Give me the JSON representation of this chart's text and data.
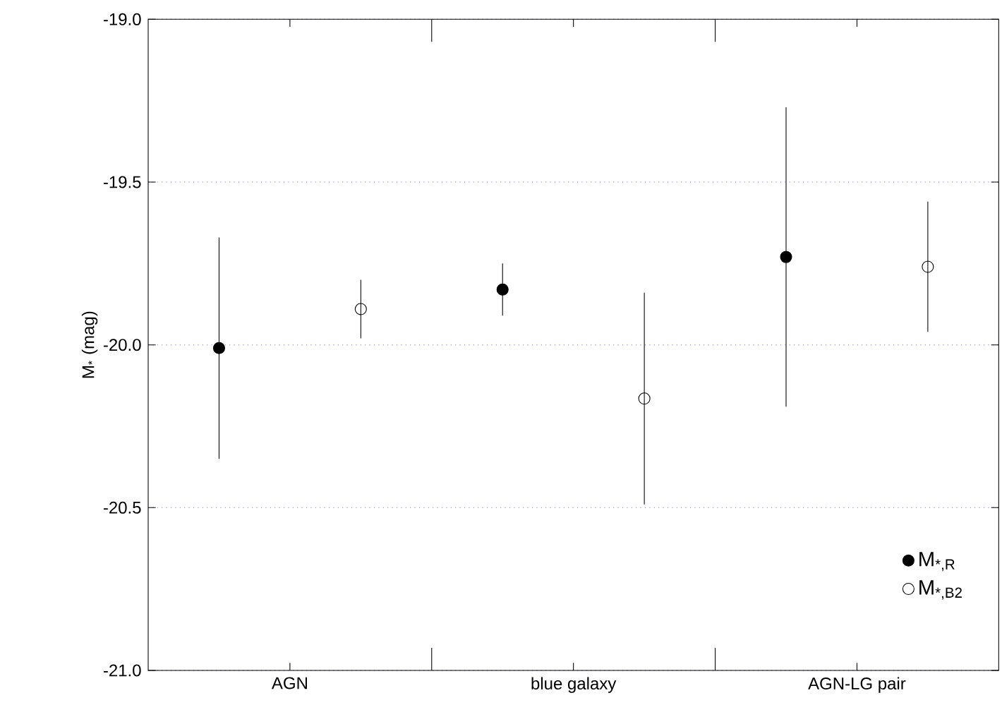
{
  "chart_data": {
    "type": "scatter",
    "ylabel": "M$_{*}$ (mag)",
    "categories": [
      "AGN",
      "blue galaxy",
      "AGN-LG pair"
    ],
    "series": [
      {
        "name": "M$_{*,R}$",
        "color": "#000000",
        "values": [
          -20.01,
          -19.83,
          -19.73
        ],
        "errors": [
          0.34,
          0.08,
          0.46
        ]
      },
      {
        "name": "M$_{*,B2}$",
        "color": "#000000",
        "values": [
          -19.89,
          -20.165,
          -19.76
        ],
        "errors": [
          0.09,
          0.325,
          0.2
        ]
      }
    ],
    "ylim": [
      -21,
      -19
    ],
    "yticks": [
      {
        "value": -21,
        "label": "-21.0"
      },
      -20.5,
      {
        "value": -20,
        "label": "-20.0"
      },
      -19.5,
      {
        "value": -19,
        "label": "-19.0"
      }
    ],
    "grid": "y",
    "legend": "bottom right",
    "marker": "circle"
  }
}
